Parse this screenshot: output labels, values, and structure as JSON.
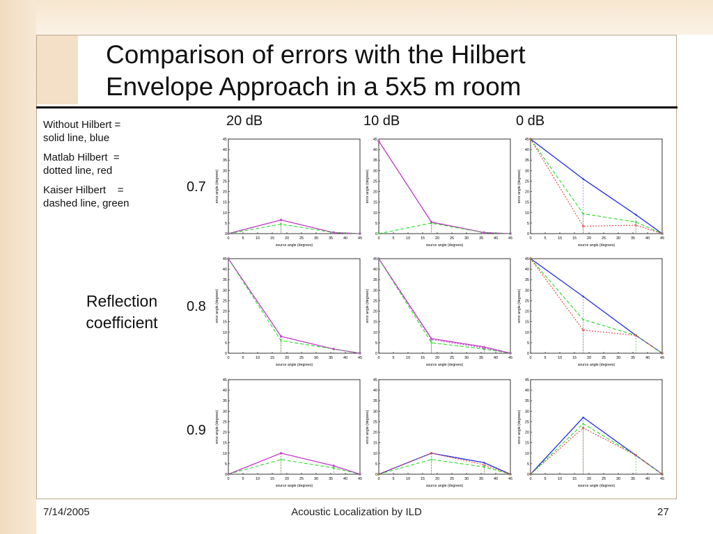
{
  "slide": {
    "title_line1": "Comparison of errors with the Hilbert",
    "title_line2": "Envelope Approach in a 5x5 m room",
    "legend": [
      "Without Hilbert =\nsolid line, blue",
      "Matlab Hilbert  =\ndotted line, red",
      "Kaiser Hilbert    =\ndashed line, green"
    ],
    "column_headers": [
      "20 dB",
      "10 dB",
      "0 dB"
    ],
    "row_headers": [
      "0.7",
      "0.8",
      "0.9"
    ],
    "row_axis_title_line1": "Reflection",
    "row_axis_title_line2": "coefficient",
    "footer_date": "7/14/2005",
    "footer_title": "Acoustic Localization by ILD",
    "footer_page": "27"
  },
  "colors": {
    "without_hilbert": "#1f2de0",
    "matlab_hilbert": "#e8433a",
    "kaiser_hilbert": "#22dd22",
    "magenta_overlap": "#c03cc8"
  },
  "chart_data": [
    {
      "type": "line",
      "row": "0.7",
      "column": "20 dB",
      "xlabel": "source angle (degrees)",
      "ylabel": "error angle (degrees)",
      "xlim": [
        0,
        45
      ],
      "ylim": [
        0,
        45
      ],
      "x_ticks": [
        0,
        5,
        10,
        15,
        20,
        25,
        30,
        35,
        40,
        45
      ],
      "y_ticks": [
        0,
        5,
        10,
        15,
        20,
        25,
        30,
        35,
        40,
        45
      ],
      "x": [
        0,
        18,
        36,
        45
      ],
      "series": [
        {
          "key": "without_hilbert",
          "values": [
            0,
            6.5,
            0.5,
            0
          ]
        },
        {
          "key": "matlab_hilbert",
          "values": [
            0,
            6.5,
            0.5,
            0
          ]
        },
        {
          "key": "kaiser_hilbert",
          "values": [
            0,
            4.5,
            0.5,
            0
          ]
        }
      ]
    },
    {
      "type": "line",
      "row": "0.7",
      "column": "10 dB",
      "xlabel": "source angle (degrees)",
      "ylabel": "error angle (degrees)",
      "xlim": [
        0,
        45
      ],
      "ylim": [
        0,
        45
      ],
      "x_ticks": [
        0,
        5,
        10,
        15,
        20,
        25,
        30,
        35,
        40,
        45
      ],
      "y_ticks": [
        0,
        5,
        10,
        15,
        20,
        25,
        30,
        35,
        40,
        45
      ],
      "x": [
        0,
        18,
        36,
        45
      ],
      "series": [
        {
          "key": "without_hilbert",
          "values": [
            44,
            5.5,
            0.5,
            0
          ]
        },
        {
          "key": "matlab_hilbert",
          "values": [
            44,
            5.5,
            0.5,
            0
          ]
        },
        {
          "key": "kaiser_hilbert",
          "values": [
            0,
            5,
            0.5,
            0
          ]
        }
      ]
    },
    {
      "type": "line",
      "row": "0.7",
      "column": "0 dB",
      "xlabel": "source angle (degrees)",
      "ylabel": "error angle (degrees)",
      "xlim": [
        0,
        45
      ],
      "ylim": [
        0,
        45
      ],
      "x_ticks": [
        0,
        5,
        10,
        15,
        20,
        25,
        30,
        35,
        40,
        45
      ],
      "y_ticks": [
        0,
        5,
        10,
        15,
        20,
        25,
        30,
        35,
        40,
        45
      ],
      "x": [
        0,
        18,
        36,
        45
      ],
      "series": [
        {
          "key": "without_hilbert",
          "values": [
            45,
            26,
            9,
            0
          ]
        },
        {
          "key": "matlab_hilbert",
          "values": [
            45,
            3.5,
            4,
            0
          ]
        },
        {
          "key": "kaiser_hilbert",
          "values": [
            45,
            9.5,
            5.5,
            0
          ]
        }
      ]
    },
    {
      "type": "line",
      "row": "0.8",
      "column": "20 dB",
      "xlabel": "source angle (degrees)",
      "ylabel": "error angle (degrees)",
      "xlim": [
        0,
        45
      ],
      "ylim": [
        0,
        45
      ],
      "x_ticks": [
        0,
        5,
        10,
        15,
        20,
        25,
        30,
        35,
        40,
        45
      ],
      "y_ticks": [
        0,
        5,
        10,
        15,
        20,
        25,
        30,
        35,
        40,
        45
      ],
      "x": [
        0,
        18,
        36,
        45
      ],
      "series": [
        {
          "key": "without_hilbert",
          "values": [
            45,
            8,
            2,
            0
          ]
        },
        {
          "key": "matlab_hilbert",
          "values": [
            45,
            8,
            2,
            0
          ]
        },
        {
          "key": "kaiser_hilbert",
          "values": [
            45,
            6,
            2,
            0
          ]
        }
      ]
    },
    {
      "type": "line",
      "row": "0.8",
      "column": "10 dB",
      "xlabel": "source angle (degrees)",
      "ylabel": "error angle (degrees)",
      "xlim": [
        0,
        45
      ],
      "ylim": [
        0,
        45
      ],
      "x_ticks": [
        0,
        5,
        10,
        15,
        20,
        25,
        30,
        35,
        40,
        45
      ],
      "y_ticks": [
        0,
        5,
        10,
        15,
        20,
        25,
        30,
        35,
        40,
        45
      ],
      "x": [
        0,
        18,
        36,
        45
      ],
      "series": [
        {
          "key": "without_hilbert",
          "values": [
            45,
            7,
            3,
            0
          ]
        },
        {
          "key": "matlab_hilbert",
          "values": [
            45,
            6.5,
            2.5,
            0
          ]
        },
        {
          "key": "kaiser_hilbert",
          "values": [
            45,
            5,
            2,
            0
          ]
        }
      ]
    },
    {
      "type": "line",
      "row": "0.8",
      "column": "0 dB",
      "xlabel": "source angle (degrees)",
      "ylabel": "error angle (degrees)",
      "xlim": [
        0,
        45
      ],
      "ylim": [
        0,
        45
      ],
      "x_ticks": [
        0,
        5,
        10,
        15,
        20,
        25,
        30,
        35,
        40,
        45
      ],
      "y_ticks": [
        0,
        5,
        10,
        15,
        20,
        25,
        30,
        35,
        40,
        45
      ],
      "x": [
        0,
        18,
        36,
        45
      ],
      "series": [
        {
          "key": "without_hilbert",
          "values": [
            45,
            27,
            8.5,
            0
          ]
        },
        {
          "key": "matlab_hilbert",
          "values": [
            45,
            11,
            8.5,
            0
          ]
        },
        {
          "key": "kaiser_hilbert",
          "values": [
            45,
            16,
            8.5,
            0
          ]
        }
      ]
    },
    {
      "type": "line",
      "row": "0.9",
      "column": "20 dB",
      "xlabel": "source angle (degrees)",
      "ylabel": "error angle (degrees)",
      "xlim": [
        0,
        45
      ],
      "ylim": [
        0,
        45
      ],
      "x_ticks": [
        0,
        5,
        10,
        15,
        20,
        25,
        30,
        35,
        40,
        45
      ],
      "y_ticks": [
        0,
        5,
        10,
        15,
        20,
        25,
        30,
        35,
        40,
        45
      ],
      "x": [
        0,
        18,
        36,
        45
      ],
      "series": [
        {
          "key": "without_hilbert",
          "values": [
            0,
            10,
            4,
            0
          ]
        },
        {
          "key": "matlab_hilbert",
          "values": [
            0,
            10,
            4,
            0
          ]
        },
        {
          "key": "kaiser_hilbert",
          "values": [
            0,
            7,
            3,
            0
          ]
        }
      ]
    },
    {
      "type": "line",
      "row": "0.9",
      "column": "10 dB",
      "xlabel": "source angle (degrees)",
      "ylabel": "error angle (degrees)",
      "xlim": [
        0,
        45
      ],
      "ylim": [
        0,
        45
      ],
      "x_ticks": [
        0,
        5,
        10,
        15,
        20,
        25,
        30,
        35,
        40,
        45
      ],
      "y_ticks": [
        0,
        5,
        10,
        15,
        20,
        25,
        30,
        35,
        40,
        45
      ],
      "x": [
        0,
        18,
        36,
        45
      ],
      "series": [
        {
          "key": "without_hilbert",
          "values": [
            0,
            10,
            5.5,
            0
          ]
        },
        {
          "key": "matlab_hilbert",
          "values": [
            0,
            10,
            4.5,
            0
          ]
        },
        {
          "key": "kaiser_hilbert",
          "values": [
            0,
            7,
            3.5,
            0
          ]
        }
      ]
    },
    {
      "type": "line",
      "row": "0.9",
      "column": "0 dB",
      "xlabel": "source angle (degrees)",
      "ylabel": "error angle (degrees)",
      "xlim": [
        0,
        45
      ],
      "ylim": [
        0,
        45
      ],
      "x_ticks": [
        0,
        5,
        10,
        15,
        20,
        25,
        30,
        35,
        40,
        45
      ],
      "y_ticks": [
        0,
        5,
        10,
        15,
        20,
        25,
        30,
        35,
        40,
        45
      ],
      "x": [
        0,
        18,
        36,
        45
      ],
      "series": [
        {
          "key": "without_hilbert",
          "values": [
            0,
            27,
            9,
            0
          ]
        },
        {
          "key": "matlab_hilbert",
          "values": [
            0,
            22,
            9,
            0
          ]
        },
        {
          "key": "kaiser_hilbert",
          "values": [
            0,
            24,
            9,
            0
          ]
        }
      ]
    }
  ]
}
